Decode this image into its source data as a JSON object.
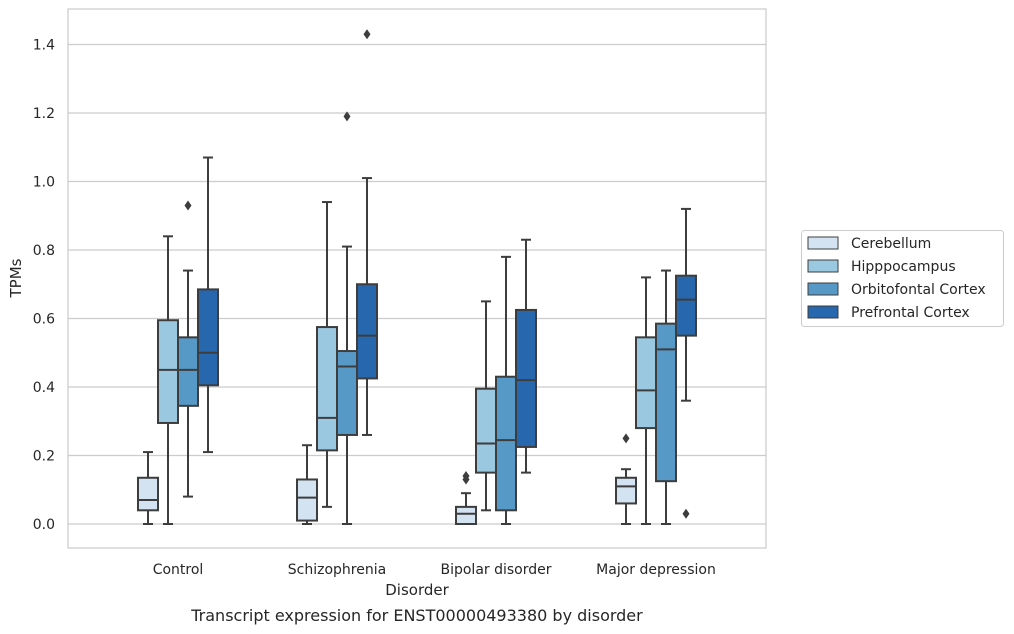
{
  "caption": "Transcript expression for ENST00000493380 by disorder",
  "chart_data": {
    "type": "box",
    "xlabel": "Disorder",
    "ylabel": "TPMs",
    "ylim": [
      -0.07,
      1.5
    ],
    "yticks": [
      0.0,
      0.2,
      0.4,
      0.6,
      0.8,
      1.0,
      1.2,
      1.4
    ],
    "grid": true,
    "legend_position": "right",
    "categories": [
      "Control",
      "Schizophrenia",
      "Bipolar disorder",
      "Major depression"
    ],
    "series": [
      {
        "name": "Cerebellum",
        "color": "#d3e3f2",
        "boxes": [
          {
            "whisker_low": 0.0,
            "q1": 0.04,
            "median": 0.07,
            "q3": 0.135,
            "whisker_high": 0.21,
            "outliers": []
          },
          {
            "whisker_low": 0.0,
            "q1": 0.01,
            "median": 0.077,
            "q3": 0.13,
            "whisker_high": 0.23,
            "outliers": []
          },
          {
            "whisker_low": 0.0,
            "q1": 0.0,
            "median": 0.03,
            "q3": 0.05,
            "whisker_high": 0.09,
            "outliers": [
              0.13,
              0.14
            ]
          },
          {
            "whisker_low": 0.0,
            "q1": 0.06,
            "median": 0.11,
            "q3": 0.135,
            "whisker_high": 0.16,
            "outliers": [
              0.25
            ]
          }
        ]
      },
      {
        "name": "Hipppocampus",
        "color": "#9ac8e0",
        "boxes": [
          {
            "whisker_low": 0.0,
            "q1": 0.295,
            "median": 0.45,
            "q3": 0.595,
            "whisker_high": 0.84,
            "outliers": []
          },
          {
            "whisker_low": 0.05,
            "q1": 0.215,
            "median": 0.31,
            "q3": 0.575,
            "whisker_high": 0.94,
            "outliers": []
          },
          {
            "whisker_low": 0.04,
            "q1": 0.15,
            "median": 0.235,
            "q3": 0.395,
            "whisker_high": 0.65,
            "outliers": []
          },
          {
            "whisker_low": 0.0,
            "q1": 0.28,
            "median": 0.39,
            "q3": 0.545,
            "whisker_high": 0.72,
            "outliers": []
          }
        ]
      },
      {
        "name": "Orbitofontal Cortex",
        "color": "#5799c6",
        "boxes": [
          {
            "whisker_low": 0.08,
            "q1": 0.345,
            "median": 0.45,
            "q3": 0.545,
            "whisker_high": 0.74,
            "outliers": [
              0.93
            ]
          },
          {
            "whisker_low": 0.0,
            "q1": 0.26,
            "median": 0.46,
            "q3": 0.505,
            "whisker_high": 0.81,
            "outliers": [
              1.19
            ]
          },
          {
            "whisker_low": 0.0,
            "q1": 0.04,
            "median": 0.245,
            "q3": 0.43,
            "whisker_high": 0.78,
            "outliers": []
          },
          {
            "whisker_low": 0.0,
            "q1": 0.125,
            "median": 0.51,
            "q3": 0.585,
            "whisker_high": 0.74,
            "outliers": []
          }
        ]
      },
      {
        "name": "Prefrontal Cortex",
        "color": "#2767ad",
        "boxes": [
          {
            "whisker_low": 0.21,
            "q1": 0.405,
            "median": 0.5,
            "q3": 0.685,
            "whisker_high": 1.07,
            "outliers": []
          },
          {
            "whisker_low": 0.26,
            "q1": 0.425,
            "median": 0.55,
            "q3": 0.7,
            "whisker_high": 1.01,
            "outliers": [
              1.43
            ]
          },
          {
            "whisker_low": 0.15,
            "q1": 0.225,
            "median": 0.42,
            "q3": 0.625,
            "whisker_high": 0.83,
            "outliers": []
          },
          {
            "whisker_low": 0.36,
            "q1": 0.55,
            "median": 0.655,
            "q3": 0.725,
            "whisker_high": 0.92,
            "outliers": [
              0.03
            ]
          }
        ]
      }
    ]
  }
}
